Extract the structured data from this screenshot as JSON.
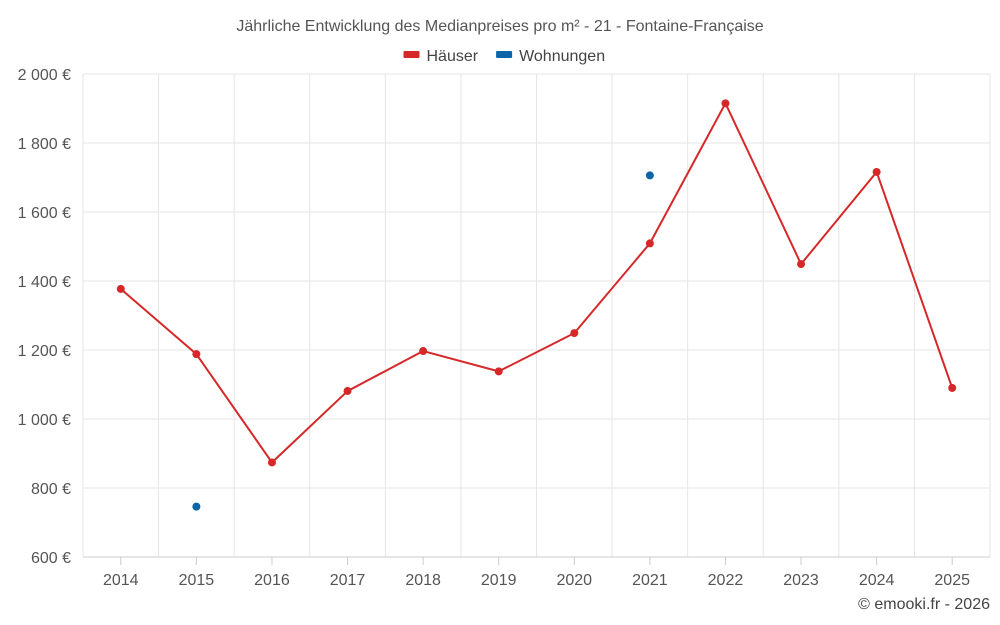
{
  "chart_data": {
    "type": "line",
    "title": "Jährliche Entwicklung des Medianpreises pro m² - 21 - Fontaine-Française",
    "categories": [
      "2014",
      "2015",
      "2016",
      "2017",
      "2018",
      "2019",
      "2020",
      "2021",
      "2022",
      "2023",
      "2024",
      "2025"
    ],
    "ylim": [
      600,
      2000
    ],
    "y_ticks": [
      600,
      800,
      1000,
      1200,
      1400,
      1600,
      1800,
      2000
    ],
    "y_tick_labels": [
      "600 €",
      "800 €",
      "1 000 €",
      "1 200 €",
      "1 400 €",
      "1 600 €",
      "1 800 €",
      "2 000 €"
    ],
    "grid": true,
    "legend_position": "top-center",
    "series": [
      {
        "name": "Häuser",
        "color": "#d62828",
        "line": true,
        "values": [
          1377,
          1188,
          874,
          1081,
          1197,
          1138,
          1249,
          1509,
          1915,
          1449,
          1716,
          1090
        ]
      },
      {
        "name": "Wohnungen",
        "color": "#0b65a8",
        "line": false,
        "values": [
          null,
          746,
          null,
          null,
          null,
          null,
          null,
          1706,
          null,
          null,
          null,
          null
        ]
      }
    ]
  },
  "credit": "© emooki.fr - 2026"
}
